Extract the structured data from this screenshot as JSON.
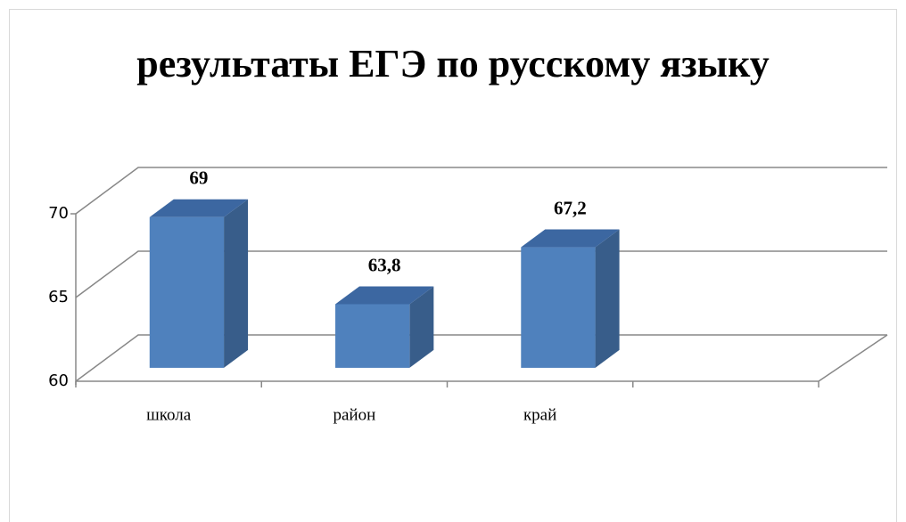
{
  "chart_data": {
    "type": "bar3d",
    "title": "результаты ЕГЭ по русскому языку",
    "categories": [
      "школа",
      "район",
      "край",
      null
    ],
    "values": [
      69,
      63.8,
      67.2,
      null
    ],
    "value_labels": [
      "69",
      "63,8",
      "67,2",
      null
    ],
    "color": "#4f81bd",
    "ylim": [
      60,
      70
    ],
    "yticks": [
      60,
      65,
      70
    ],
    "grid": true
  }
}
